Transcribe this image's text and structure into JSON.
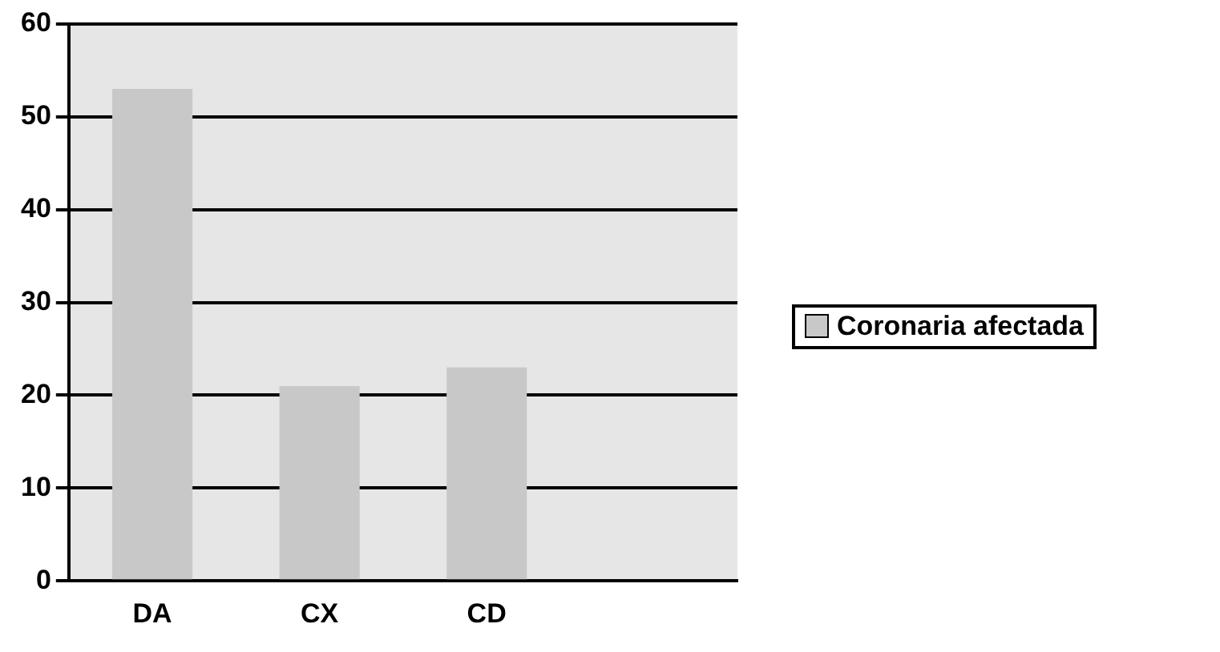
{
  "chart_data": {
    "type": "bar",
    "categories": [
      "DA",
      "CX",
      "CD",
      null
    ],
    "series": [
      {
        "name": "Coronaria afectada",
        "color": "#c8c8c8",
        "values": [
          53,
          21,
          23,
          null
        ]
      }
    ],
    "ylim": [
      0,
      60
    ],
    "yticks": [
      0,
      10,
      20,
      30,
      40,
      50,
      60
    ],
    "grid": "y",
    "legend": "right"
  }
}
